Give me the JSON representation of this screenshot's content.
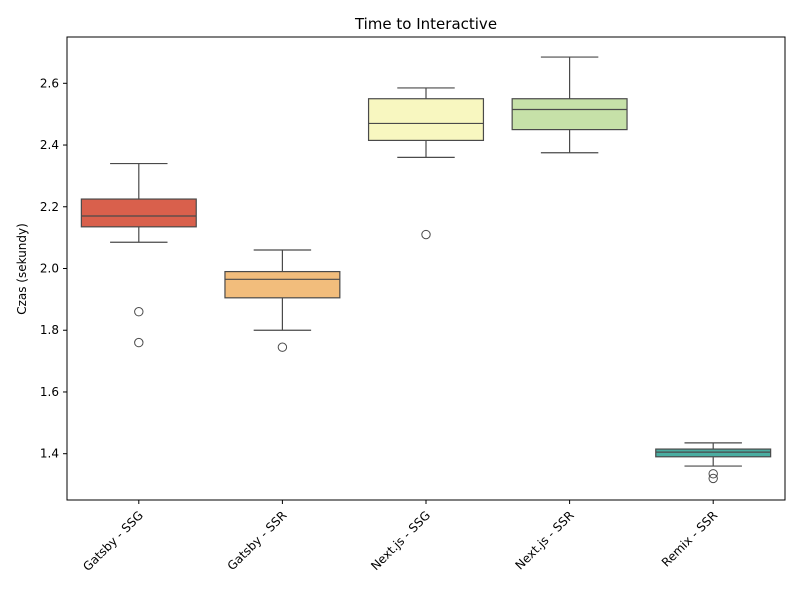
{
  "chart_data": {
    "type": "box",
    "title": "Time to Interactive",
    "xlabel": "",
    "ylabel": "Czas (sekundy)",
    "ylim": [
      1.25,
      2.75
    ],
    "yticks": [
      1.4,
      1.6,
      1.8,
      2.0,
      2.2,
      2.4,
      2.6
    ],
    "ytick_labels": [
      "1.4",
      "1.6",
      "1.8",
      "2.0",
      "2.2",
      "2.4",
      "2.6"
    ],
    "categories": [
      "Gatsby - SSG",
      "Gatsby - SSR",
      "Next.js - SSG",
      "Next.js - SSR",
      "Remix - SSR"
    ],
    "boxes": [
      {
        "whisker_low": 2.085,
        "q1": 2.135,
        "median": 2.17,
        "q3": 2.225,
        "whisker_high": 2.34,
        "outliers": [
          1.86,
          1.76
        ],
        "color": "#d9604c"
      },
      {
        "whisker_low": 1.8,
        "q1": 1.905,
        "median": 1.965,
        "q3": 1.99,
        "whisker_high": 2.06,
        "outliers": [
          1.745
        ],
        "color": "#f2bd7c"
      },
      {
        "whisker_low": 2.36,
        "q1": 2.415,
        "median": 2.47,
        "q3": 2.55,
        "whisker_high": 2.585,
        "outliers": [
          2.11
        ],
        "color": "#f8f7c0"
      },
      {
        "whisker_low": 2.375,
        "q1": 2.45,
        "median": 2.515,
        "q3": 2.55,
        "whisker_high": 2.685,
        "outliers": [],
        "color": "#c6e1a8"
      },
      {
        "whisker_low": 1.36,
        "q1": 1.39,
        "median": 1.405,
        "q3": 1.415,
        "whisker_high": 1.435,
        "outliers": [
          1.335,
          1.32
        ],
        "color": "#4aada1"
      }
    ],
    "grid": false,
    "legend": "none"
  }
}
